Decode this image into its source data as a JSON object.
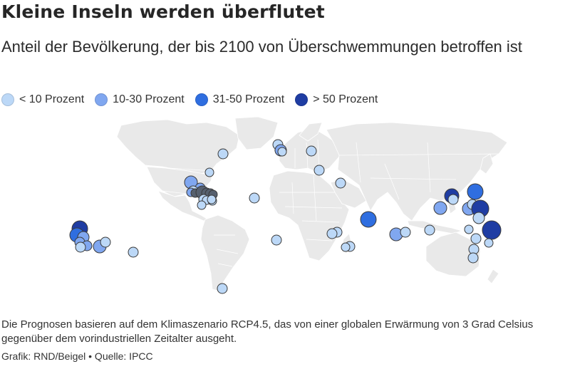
{
  "title": "Kleine Inseln werden überflutet",
  "subtitle": "Anteil der Bevölkerung, der bis 2100 von Überschwemmungen betroffen ist",
  "legend": [
    {
      "label": "< 10 Prozent",
      "color": "#bcd8f7"
    },
    {
      "label": "10-30 Prozent",
      "color": "#80a7f0"
    },
    {
      "label": "31-50 Prozent",
      "color": "#2f6ee0"
    },
    {
      "label": "> 50 Prozent",
      "color": "#1f3da3"
    }
  ],
  "colors": {
    "land": "#e9e9e9",
    "border": "#ffffff",
    "circle_outline": "#3a3a3a",
    "highlight": "#56606e"
  },
  "footnote": "Die Prognosen basieren auf dem Klimaszenario RCP4.5, das von einer globalen Erwärmung von 3 Grad Celsius gegenüber dem vorindustriellen Zeitalter ausgeht.",
  "source": "Grafik: RND/Beigel • Quelle: IPCC"
}
